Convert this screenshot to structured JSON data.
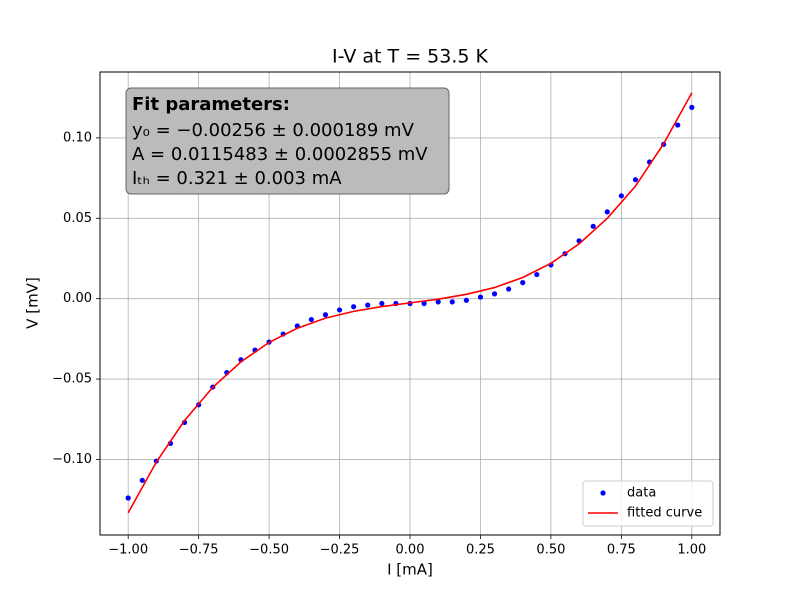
{
  "chart_data": {
    "type": "scatter",
    "title": "I-V at T = 53.5 K",
    "x_label": "I [mA]",
    "y_label": "V [mV]",
    "xlim": [
      -1.1,
      1.1
    ],
    "ylim": [
      -0.147,
      0.141
    ],
    "xticks": [
      {
        "value": -1,
        "label": "−1.00"
      },
      {
        "value": -0.75,
        "label": "−0.75"
      },
      {
        "value": -0.5,
        "label": "−0.50"
      },
      {
        "value": -0.25,
        "label": "−0.25"
      },
      {
        "value": 0,
        "label": "0.00"
      },
      {
        "value": 0.25,
        "label": "0.25"
      },
      {
        "value": 0.5,
        "label": "0.50"
      },
      {
        "value": 0.75,
        "label": "0.75"
      },
      {
        "value": 1,
        "label": "1.00"
      }
    ],
    "yticks": [
      {
        "value": -0.1,
        "label": "−0.10"
      },
      {
        "value": -0.05,
        "label": "−0.05"
      },
      {
        "value": 0,
        "label": "0.00"
      },
      {
        "value": 0.05,
        "label": "0.05"
      },
      {
        "value": 0.1,
        "label": "0.10"
      }
    ],
    "grid": true,
    "legend_position": "lower right",
    "annotation": {
      "heading": "Fit parameters:",
      "lines": [
        "y₀ = −0.00256 ± 0.000189 mV",
        "A = 0.0115483 ± 0.0002855 mV",
        "Iₜₕ = 0.321 ± 0.003 mA"
      ]
    },
    "series": [
      {
        "name": "data",
        "type": "scatter",
        "color": "#0000ff",
        "x": [
          -1,
          -0.95,
          -0.9,
          -0.85,
          -0.8,
          -0.75,
          -0.7,
          -0.65,
          -0.6,
          -0.55,
          -0.5,
          -0.45,
          -0.4,
          -0.35,
          -0.3,
          -0.25,
          -0.2,
          -0.15,
          -0.1,
          -0.05,
          0,
          0.05,
          0.1,
          0.15,
          0.2,
          0.25,
          0.3,
          0.35,
          0.4,
          0.45,
          0.5,
          0.55,
          0.6,
          0.65,
          0.7,
          0.75,
          0.8,
          0.85,
          0.9,
          0.95,
          1
        ],
        "values": [
          -0.124,
          -0.113,
          -0.101,
          -0.09,
          -0.077,
          -0.066,
          -0.055,
          -0.046,
          -0.038,
          -0.032,
          -0.027,
          -0.022,
          -0.017,
          -0.013,
          -0.01,
          -0.007,
          -0.005,
          -0.004,
          -0.003,
          -0.003,
          -0.003,
          -0.003,
          -0.002,
          -0.002,
          -0.001,
          0.001,
          0.003,
          0.006,
          0.01,
          0.015,
          0.021,
          0.028,
          0.036,
          0.045,
          0.054,
          0.064,
          0.074,
          0.085,
          0.096,
          0.108,
          0.119
        ]
      },
      {
        "name": "fitted curve",
        "type": "line",
        "color": "#ff0000",
        "x": [
          -1,
          -0.9,
          -0.8,
          -0.7,
          -0.6,
          -0.5,
          -0.4,
          -0.3,
          -0.2,
          -0.1,
          0,
          0.1,
          0.2,
          0.3,
          0.4,
          0.5,
          0.6,
          0.7,
          0.8,
          0.9,
          1
        ],
        "values": [
          -0.1332,
          -0.1016,
          -0.0758,
          -0.0552,
          -0.0393,
          -0.0272,
          -0.0184,
          -0.0121,
          -0.0079,
          -0.0049,
          -0.0026,
          -0.0003,
          0.0027,
          0.0069,
          0.0132,
          0.022,
          0.0341,
          0.05,
          0.07,
          0.0964,
          0.128
        ]
      }
    ]
  }
}
